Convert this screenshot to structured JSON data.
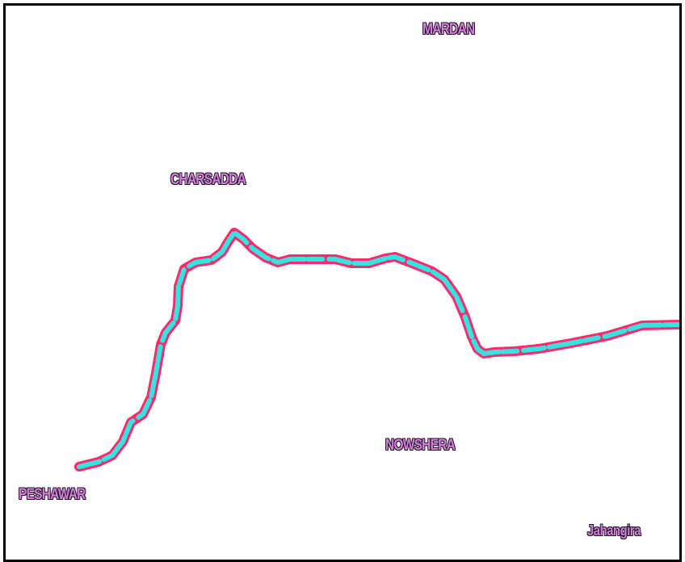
{
  "map": {
    "cities": {
      "mardan": "MARDAN",
      "charsadda": "CHARSADDA",
      "nowshera": "NOWSHERA",
      "peshawar": "PESHAWAR",
      "jahangira": "Jahangira"
    },
    "colors": {
      "route_outer": "#ff2a6a",
      "route_inner": "#35e3e3",
      "label_fill": "#d77fd8",
      "label_outline": "#1a1326",
      "frame": "#000000",
      "background": "#ffffff"
    }
  }
}
